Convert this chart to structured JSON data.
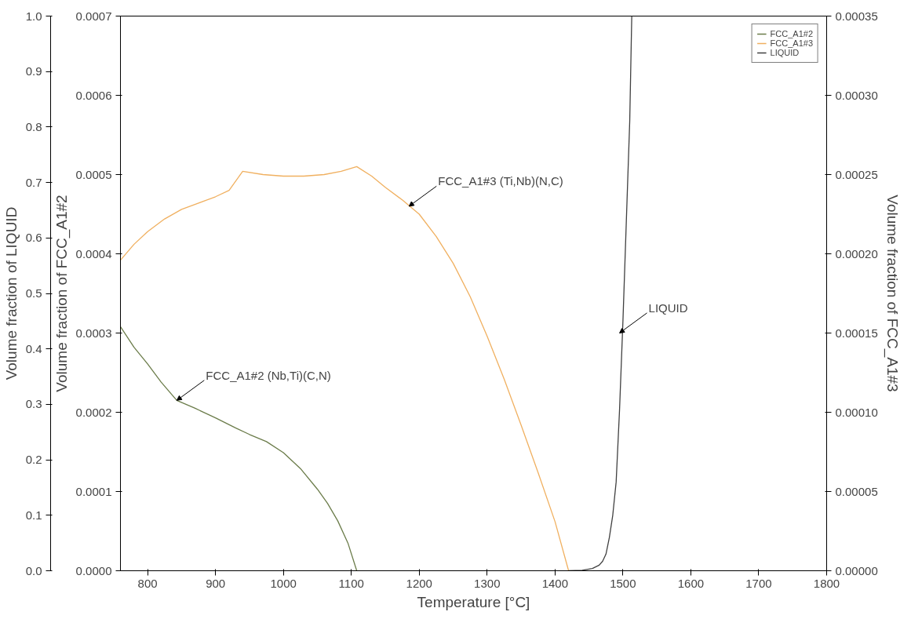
{
  "chart_data": {
    "type": "line",
    "xlabel": "Temperature [°C]",
    "ylabel": "Volume fraction of FCC_A1#2",
    "y2label": "Volume fraction of FCC_A1#3",
    "y3label": "Volume fraction of LIQUID",
    "xlim": [
      760,
      1800
    ],
    "xticks": [
      800,
      900,
      1000,
      1100,
      1200,
      1300,
      1400,
      1500,
      1600,
      1700,
      1800
    ],
    "ylim": [
      0,
      0.0007
    ],
    "yticks": [
      {
        "value": 0,
        "label": "0.0000"
      },
      0.0001,
      0.0002,
      0.0003,
      0.0004,
      0.0005,
      0.0006,
      0.0007
    ],
    "y2lim": [
      0,
      0.00035
    ],
    "y2ticks": [
      {
        "value": 0,
        "label": "0.00000"
      },
      {
        "value": 5e-05,
        "label": "0.00005"
      },
      {
        "value": 0.0001,
        "label": "0.00010"
      },
      {
        "value": 0.00015,
        "label": "0.00015"
      },
      {
        "value": 0.0002,
        "label": "0.00020"
      },
      {
        "value": 0.00025,
        "label": "0.00025"
      },
      {
        "value": 0.0003,
        "label": "0.00030"
      },
      {
        "value": 0.00035,
        "label": "0.00035"
      }
    ],
    "y3lim": [
      0,
      1
    ],
    "y3ticks": [
      {
        "value": 0,
        "label": "0.0"
      },
      0.1,
      0.2,
      0.3,
      0.4,
      0.5,
      0.6,
      0.7,
      0.8,
      0.9,
      {
        "value": 1,
        "label": "1.0"
      }
    ],
    "grid": false,
    "legend": "top right",
    "marker": "none",
    "line_style": "solid",
    "series": [
      {
        "name": "FCC_A1#2",
        "color": "#6b7c4a",
        "x": [
          760,
          780,
          800,
          820,
          843,
          870,
          900,
          930,
          950,
          975,
          1000,
          1025,
          1050,
          1065,
          1080,
          1095,
          1108
        ],
        "values": [
          0.000308,
          0.000282,
          0.000261,
          0.000238,
          0.000215,
          0.000205,
          0.000193,
          0.00018,
          0.000172,
          0.000163,
          0.000149,
          0.000129,
          0.000103,
          8.5e-05,
          6.3e-05,
          3.5e-05,
          0
        ]
      },
      {
        "name": "FCC_A1#3",
        "color": "#f0b060",
        "axis": "y2",
        "x": [
          760,
          780,
          800,
          825,
          850,
          875,
          900,
          920,
          940,
          970,
          1000,
          1030,
          1060,
          1085,
          1108,
          1130,
          1150,
          1175,
          1200,
          1225,
          1250,
          1275,
          1300,
          1325,
          1350,
          1375,
          1400,
          1420
        ],
        "values": [
          0.000196,
          0.000206,
          0.000214,
          0.000222,
          0.000228,
          0.000232,
          0.000236,
          0.00024,
          0.000252,
          0.00025,
          0.000249,
          0.000249,
          0.00025,
          0.000252,
          0.000255,
          0.000249,
          0.000242,
          0.000234,
          0.000225,
          0.000211,
          0.000194,
          0.000173,
          0.000148,
          0.000121,
          9.2e-05,
          6.2e-05,
          3.1e-05,
          0
        ]
      },
      {
        "name": "LIQUID",
        "color": "#404040",
        "axis": "y3",
        "x": [
          1420,
          1440,
          1455,
          1465,
          1470,
          1475,
          1480,
          1485,
          1490,
          1495,
          1500,
          1505,
          1510,
          1513
        ],
        "values": [
          0,
          0.001,
          0.004,
          0.01,
          0.017,
          0.03,
          0.06,
          0.1,
          0.16,
          0.29,
          0.45,
          0.63,
          0.81,
          1.0
        ]
      }
    ],
    "annotations": [
      {
        "text": "FCC_A1#2 (Nb,Ti)(C,N)",
        "x": 843,
        "y": 0.000215
      },
      {
        "text": "FCC_A1#3 (Ti,Nb)(N,C)",
        "x": 1185,
        "y": 0.00046
      },
      {
        "text": "LIQUID",
        "x": 1495,
        "y": 0.0003
      }
    ]
  }
}
